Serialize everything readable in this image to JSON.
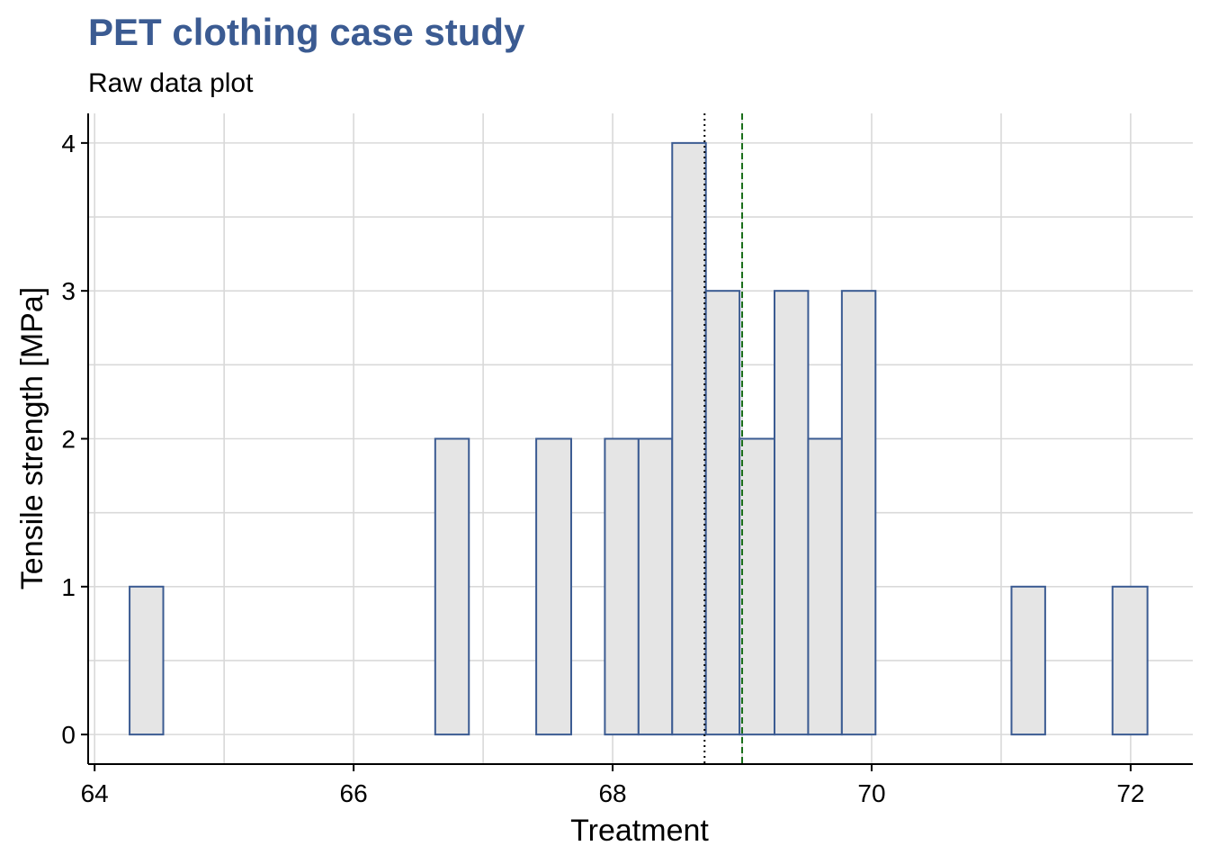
{
  "chart_data": {
    "type": "bar",
    "title": "PET clothing case study",
    "subtitle": "Raw data plot",
    "xlabel": "Treatment",
    "ylabel": "Tensile strength [MPa]",
    "xlim": [
      63.95,
      72.48
    ],
    "ylim": [
      -0.2,
      4.2
    ],
    "xticks": [
      64,
      66,
      68,
      70,
      72
    ],
    "yticks": [
      0,
      1,
      2,
      3,
      4
    ],
    "grid": true,
    "bin_width": 0.2614,
    "bins": [
      {
        "x0": 64.27,
        "x1": 64.53,
        "count": 1
      },
      {
        "x0": 64.53,
        "x1": 64.8,
        "count": 0
      },
      {
        "x0": 64.8,
        "x1": 65.06,
        "count": 0
      },
      {
        "x0": 65.06,
        "x1": 65.32,
        "count": 0
      },
      {
        "x0": 65.32,
        "x1": 65.58,
        "count": 0
      },
      {
        "x0": 65.58,
        "x1": 65.84,
        "count": 0
      },
      {
        "x0": 65.84,
        "x1": 66.1,
        "count": 0
      },
      {
        "x0": 66.1,
        "x1": 66.37,
        "count": 0
      },
      {
        "x0": 66.37,
        "x1": 66.63,
        "count": 0
      },
      {
        "x0": 66.63,
        "x1": 66.89,
        "count": 2
      },
      {
        "x0": 66.89,
        "x1": 67.15,
        "count": 0
      },
      {
        "x0": 67.15,
        "x1": 67.41,
        "count": 0
      },
      {
        "x0": 67.41,
        "x1": 67.68,
        "count": 2
      },
      {
        "x0": 67.68,
        "x1": 67.94,
        "count": 0
      },
      {
        "x0": 67.94,
        "x1": 68.2,
        "count": 2
      },
      {
        "x0": 68.2,
        "x1": 68.46,
        "count": 2
      },
      {
        "x0": 68.46,
        "x1": 68.72,
        "count": 4
      },
      {
        "x0": 68.72,
        "x1": 68.98,
        "count": 3
      },
      {
        "x0": 68.98,
        "x1": 69.25,
        "count": 2
      },
      {
        "x0": 69.25,
        "x1": 69.51,
        "count": 3
      },
      {
        "x0": 69.51,
        "x1": 69.77,
        "count": 2
      },
      {
        "x0": 69.77,
        "x1": 70.03,
        "count": 3
      },
      {
        "x0": 70.03,
        "x1": 70.29,
        "count": 0
      },
      {
        "x0": 70.29,
        "x1": 70.56,
        "count": 0
      },
      {
        "x0": 70.56,
        "x1": 70.82,
        "count": 0
      },
      {
        "x0": 70.82,
        "x1": 71.08,
        "count": 0
      },
      {
        "x0": 71.08,
        "x1": 71.34,
        "count": 1
      },
      {
        "x0": 71.34,
        "x1": 71.6,
        "count": 0
      },
      {
        "x0": 71.6,
        "x1": 71.86,
        "count": 0
      },
      {
        "x0": 71.86,
        "x1": 72.13,
        "count": 1
      }
    ],
    "reference_lines": [
      {
        "x": 68.71,
        "style": "dotted",
        "color": "#000000"
      },
      {
        "x": 69.0,
        "style": "dashed",
        "color": "#1a6e1a"
      }
    ],
    "colors": {
      "title": "#3b5b92",
      "bar_fill": "#e5e5e5",
      "bar_stroke": "#3b5b92",
      "grid": "#d9d9d9",
      "axis": "#000000"
    }
  }
}
